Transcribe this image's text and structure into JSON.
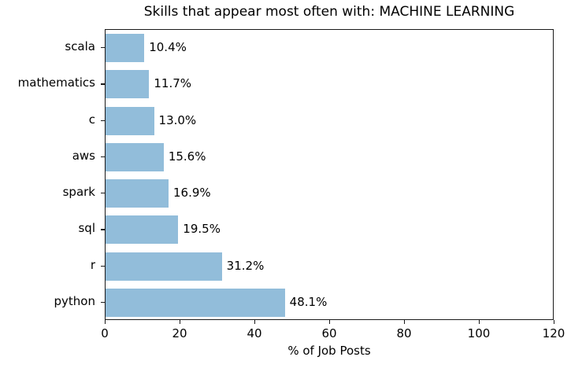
{
  "chart_data": {
    "type": "bar",
    "orientation": "horizontal",
    "title": "Skills that appear most often with: MACHINE LEARNING",
    "xlabel": "% of Job Posts",
    "ylabel": "",
    "categories": [
      "scala",
      "mathematics",
      "c",
      "aws",
      "spark",
      "sql",
      "r",
      "python"
    ],
    "values": [
      10.4,
      11.7,
      13.0,
      15.6,
      16.9,
      19.5,
      31.2,
      48.1
    ],
    "value_labels": [
      "10.4%",
      "11.7%",
      "13.0%",
      "15.6%",
      "16.9%",
      "19.5%",
      "31.2%",
      "48.1%"
    ],
    "x_ticks": [
      0,
      20,
      40,
      60,
      80,
      100,
      120
    ],
    "xlim": [
      0,
      120
    ],
    "grid": false,
    "legend_position": "none",
    "bar_color": "#92bdda",
    "axis_color": "#1a1a1a",
    "text_color": "#000000",
    "background_color": "#ffffff"
  }
}
